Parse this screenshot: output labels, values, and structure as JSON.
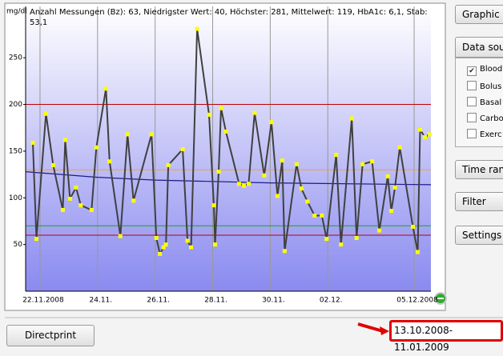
{
  "chart_data": {
    "type": "line",
    "title": "Anzahl Messungen (Bz): 63, Niedrigster Wert: 40, Höchster: 281, Mittelwert: 119, HbA1c: 6,1, Stab: 53,1",
    "y_label": "mg/dl",
    "xlim": [
      "2008-11-21T12:00",
      "2008-12-05T14:00"
    ],
    "xticks": [
      {
        "value": "2008-11-22T00:00",
        "label": "22.11.2008"
      },
      {
        "value": "2008-11-24T00:00",
        "label": "24.11."
      },
      {
        "value": "2008-11-26T00:00",
        "label": "26.11."
      },
      {
        "value": "2008-11-28T00:00",
        "label": "28.11."
      },
      {
        "value": "2008-11-30T00:00",
        "label": "30.11."
      },
      {
        "value": "2008-12-02T00:00",
        "label": "02.12."
      },
      {
        "value": "2008-12-05T00:00",
        "label": "05.12.2008"
      }
    ],
    "ylim": [
      0,
      305
    ],
    "yticks": [
      50,
      100,
      150,
      200,
      250
    ],
    "grid": true,
    "hlines": [
      {
        "value": 200,
        "color": "#c00000"
      },
      {
        "value": 130,
        "color": "#f0a040"
      },
      {
        "value": 70,
        "color": "#20a020"
      },
      {
        "value": 60,
        "color": "#c00000"
      }
    ],
    "series": [
      {
        "color": "#404040",
        "marker_color": "#ffff00",
        "x": [
          "2008-11-21T18:00",
          "2008-11-21T21:00",
          "2008-11-22T05:00",
          "2008-11-22T11:00",
          "2008-11-22T19:00",
          "2008-11-22T21:00",
          "2008-11-23T01:00",
          "2008-11-23T06:00",
          "2008-11-23T10:00",
          "2008-11-23T19:00",
          "2008-11-23T23:00",
          "2008-11-24T07:00",
          "2008-11-24T10:00",
          "2008-11-24T19:00",
          "2008-11-25T01:00",
          "2008-11-25T06:00",
          "2008-11-25T21:00",
          "2008-11-26T01:00",
          "2008-11-26T04:00",
          "2008-11-26T07:00",
          "2008-11-26T09:00",
          "2008-11-26T11:00",
          "2008-11-26T23:00",
          "2008-11-27T03:00",
          "2008-11-27T06:00",
          "2008-11-27T11:00",
          "2008-11-27T21:00",
          "2008-11-28T01:00",
          "2008-11-28T02:00",
          "2008-11-28T05:00",
          "2008-11-28T07:00",
          "2008-11-28T11:00",
          "2008-11-28T22:00",
          "2008-11-29T02:00",
          "2008-11-29T06:00",
          "2008-11-29T11:00",
          "2008-11-29T19:00",
          "2008-11-30T01:00",
          "2008-11-30T06:00",
          "2008-11-30T10:00",
          "2008-11-30T12:00",
          "2008-11-30T22:00",
          "2008-12-01T02:00",
          "2008-12-01T07:00",
          "2008-12-01T13:00",
          "2008-12-01T19:00",
          "2008-12-01T23:00",
          "2008-12-02T07:00",
          "2008-12-02T11:00",
          "2008-12-02T20:00",
          "2008-12-03T00:00",
          "2008-12-03T05:00",
          "2008-12-03T13:00",
          "2008-12-03T19:00",
          "2008-12-04T02:00",
          "2008-12-04T05:00",
          "2008-12-04T08:00",
          "2008-12-04T12:00",
          "2008-12-04T23:00",
          "2008-12-05T03:00",
          "2008-12-05T05:00",
          "2008-12-05T09:00",
          "2008-12-05T13:00"
        ],
        "values": [
          159,
          56,
          190,
          135,
          87,
          162,
          99,
          111,
          92,
          87,
          154,
          217,
          139,
          59,
          168,
          97,
          168,
          57,
          40,
          47,
          50,
          135,
          152,
          54,
          47,
          281,
          189,
          92,
          50,
          128,
          196,
          171,
          115,
          113,
          115,
          191,
          124,
          181,
          102,
          140,
          43,
          136,
          110,
          96,
          81,
          81,
          56,
          146,
          50,
          185,
          57,
          136,
          139,
          65,
          123,
          86,
          111,
          154,
          69,
          42,
          173,
          165,
          168
        ]
      },
      {
        "color": "#1a1a8c",
        "x": [
          "2008-11-21T12:00",
          "2008-11-24T00:00",
          "2008-11-26T00:00",
          "2008-11-30T00:00",
          "2008-12-05T14:00"
        ],
        "values": [
          128,
          122,
          119,
          116,
          114
        ]
      }
    ]
  },
  "ui": {
    "graphic_button": "Graphic",
    "data_source": {
      "title": "Data sou",
      "items": [
        {
          "label": "Blood",
          "checked": true
        },
        {
          "label": "Bolus",
          "checked": false
        },
        {
          "label": "Basal",
          "checked": false
        },
        {
          "label": "Carbo",
          "checked": false
        },
        {
          "label": "Exerc",
          "checked": false
        }
      ]
    },
    "time_range_button": "Time ran",
    "filter_button": "Filter",
    "settings_button": "Settings",
    "directprint_button": "Directprint",
    "date_range": "13.10.2008-11.01.2009"
  }
}
